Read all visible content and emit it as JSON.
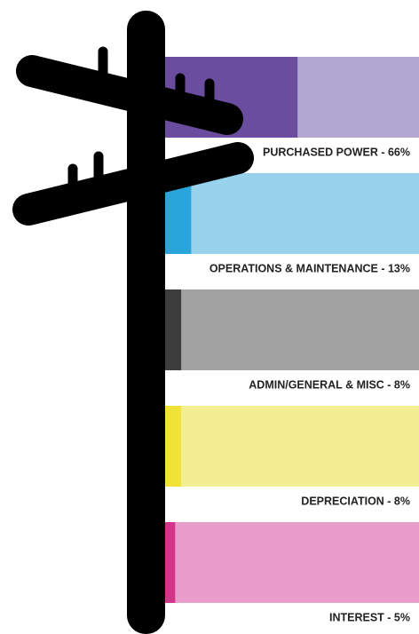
{
  "chart_data": {
    "type": "bar",
    "categories": [
      "PURCHASED POWER - 66%",
      "OPERATIONS & MAINTENANCE - 13%",
      "ADMIN/GENERAL & MISC - 8%",
      "DEPRECIATION - 8%",
      "INTEREST - 5%"
    ],
    "values": [
      66,
      13,
      8,
      8,
      5
    ],
    "colors": [
      "#6a4d9f",
      "#2aa5dc",
      "#3d3d3d",
      "#f0e236",
      "#d3358b"
    ],
    "background_colors": [
      "#b2a6d3",
      "#98d3ee",
      "#a2a2a2",
      "#f3ee92",
      "#e89dcb"
    ]
  }
}
